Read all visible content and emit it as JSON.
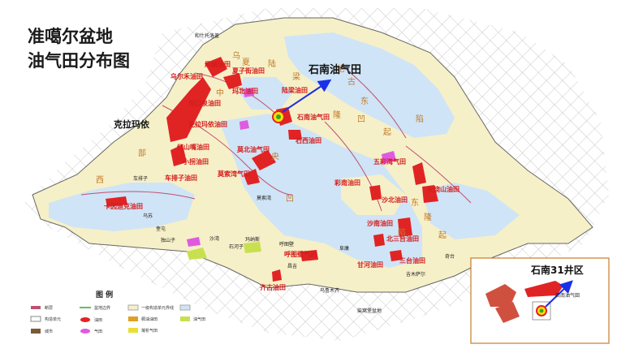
{
  "map": {
    "title_lines": [
      "准噶尔盆地",
      "油气田分布图"
    ],
    "callout_field": "石南油气田",
    "callout_area": "石南31井区",
    "inset_field_label": "石南油气田",
    "kelamayi": "克拉玛依",
    "legend_title": "图 例"
  },
  "oilfields": [
    "风城油田",
    "乌尔禾油田",
    "夏子街油田",
    "玛北油田",
    "百口泉油田",
    "陆梁油田",
    "克拉玛依油田",
    "石南油气田",
    "红山嘴油田",
    "石西油田",
    "小拐油田",
    "莫北油气田",
    "车排子油田",
    "莫索湾气田",
    "五彩湾气田",
    "彩南油田",
    "卡因迪克油田",
    "火烧山油田",
    "沙北油田",
    "沙南油田",
    "北三台油田",
    "呼图壁气田",
    "三台油田",
    "甘河油田",
    "齐古油田"
  ],
  "tectonic_chars": [
    "乌",
    "夏",
    "陆",
    "中",
    "梁",
    "伦",
    "古",
    "东",
    "隆",
    "起",
    "凹",
    "陷",
    "西",
    "部",
    "东",
    "隆",
    "起",
    "央",
    "凹",
    "陷",
    "北",
    "天",
    "山",
    "山",
    "西",
    "准",
    "克",
    "拉",
    "扎",
    "伊",
    "林",
    "北",
    "南",
    "缘",
    "南"
  ],
  "cities": [
    "和什托洛盖",
    "克拉玛依",
    "车排子",
    "乌苏",
    "奎屯",
    "独山子",
    "沙湾",
    "石河子",
    "玛纳斯",
    "呼图壁",
    "昌吉",
    "阜康",
    "乌鲁木齐",
    "吉木萨尔",
    "奇台",
    "柴窝堡盆地",
    "莫索湾"
  ],
  "legend_items": [
    "断层",
    "盆地边界",
    "一级构造单元界线",
    "构造单元",
    "城市",
    "稠油油田",
    "气田",
    "油田",
    "凝析气田",
    "油气田"
  ],
  "colors": {
    "uplift": "#f6f0c8",
    "depression": "#cfe4f6",
    "oil": "#e02424",
    "gas": "#e05ae0",
    "label": "#d41c1c",
    "fault": "#c05070",
    "arrow": "#1b2ee8",
    "inset_border": "#c87b2a"
  }
}
